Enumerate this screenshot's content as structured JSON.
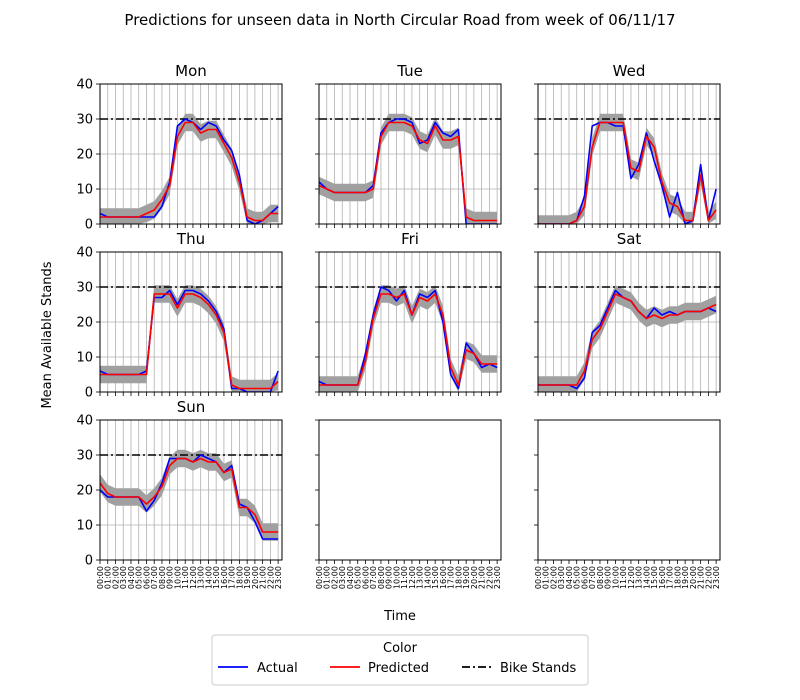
{
  "figure": {
    "title": "Predictions for unseen data in North Circular Road from week of 06/11/17",
    "xlabel": "Time",
    "ylabel": "Mean Available Stands"
  },
  "legend": {
    "title": "Color",
    "placement": "bottom-center",
    "items": [
      {
        "label": "Actual",
        "color": "#0000ff",
        "style": "solid"
      },
      {
        "label": "Predicted",
        "color": "#ff0000",
        "style": "solid"
      },
      {
        "label": "Bike Stands",
        "color": "#000000",
        "style": "dashdot"
      }
    ]
  },
  "chart_data": {
    "type": "line",
    "ylim": [
      0,
      40
    ],
    "yticks": [
      0,
      10,
      20,
      30,
      40
    ],
    "grid": true,
    "xticks": [
      "00:00",
      "01:00",
      "02:00",
      "03:00",
      "04:00",
      "05:00",
      "06:00",
      "07:00",
      "08:00",
      "09:00",
      "10:00",
      "11:00",
      "12:00",
      "13:00",
      "14:00",
      "15:00",
      "16:00",
      "17:00",
      "18:00",
      "19:00",
      "20:00",
      "21:00",
      "22:00",
      "23:00"
    ],
    "hours": [
      0,
      1,
      2,
      3,
      4,
      5,
      6,
      7,
      8,
      9,
      10,
      11,
      12,
      13,
      14,
      15,
      16,
      17,
      18,
      19,
      20,
      21,
      22,
      23
    ],
    "bike_stands": 30,
    "band_halfwidth": 2.5,
    "band_color": "#a0a0a0",
    "panels": [
      {
        "title": "Mon",
        "actual": [
          3,
          2,
          2,
          2,
          2,
          2,
          2,
          2,
          5,
          12,
          28,
          30,
          29,
          27,
          29,
          28,
          24,
          21,
          14,
          1,
          0,
          1,
          3,
          5
        ],
        "predicted": [
          2,
          2,
          2,
          2,
          2,
          2,
          3,
          4,
          7,
          11,
          25,
          29,
          29,
          26,
          27,
          27,
          23,
          19,
          12,
          2,
          1,
          1,
          3,
          3
        ]
      },
      {
        "title": "Tue",
        "actual": [
          12,
          10,
          9,
          9,
          9,
          9,
          9,
          11,
          26,
          29,
          30,
          30,
          29,
          23,
          24,
          29,
          26,
          25,
          27,
          0,
          0,
          0,
          0,
          0
        ],
        "predicted": [
          11,
          10,
          9,
          9,
          9,
          9,
          9,
          10,
          25,
          29,
          29,
          29,
          28,
          24,
          23,
          28,
          24,
          24,
          25,
          2,
          1,
          1,
          1,
          1
        ]
      },
      {
        "title": "Wed",
        "actual": [
          0,
          0,
          0,
          0,
          0,
          1,
          8,
          28,
          29,
          29,
          28,
          28,
          13,
          17,
          26,
          18,
          11,
          2,
          9,
          0,
          1,
          17,
          1,
          10
        ],
        "predicted": [
          0,
          0,
          0,
          0,
          0,
          1,
          5,
          22,
          29,
          29,
          29,
          29,
          16,
          15,
          25,
          22,
          12,
          6,
          5,
          1,
          1,
          14,
          1,
          4
        ]
      },
      {
        "title": "Thu",
        "actual": [
          6,
          5,
          5,
          5,
          5,
          5,
          6,
          27,
          27,
          29,
          25,
          29,
          29,
          28,
          26,
          23,
          18,
          1,
          1,
          0,
          0,
          0,
          0,
          6
        ],
        "predicted": [
          5,
          5,
          5,
          5,
          5,
          5,
          5,
          28,
          28,
          28,
          24,
          28,
          28,
          27,
          25,
          22,
          17,
          2,
          1,
          1,
          1,
          1,
          1,
          3
        ]
      },
      {
        "title": "Fri",
        "actual": [
          3,
          2,
          2,
          2,
          2,
          2,
          11,
          22,
          30,
          29,
          26,
          29,
          22,
          28,
          27,
          29,
          20,
          5,
          1,
          14,
          11,
          7,
          8,
          7
        ],
        "predicted": [
          2,
          2,
          2,
          2,
          2,
          2,
          9,
          21,
          28,
          28,
          27,
          28,
          22,
          27,
          26,
          28,
          22,
          7,
          2,
          12,
          11,
          8,
          8,
          8
        ]
      },
      {
        "title": "Sat",
        "actual": [
          2,
          2,
          2,
          2,
          2,
          1,
          4,
          17,
          19,
          24,
          29,
          27,
          26,
          23,
          21,
          24,
          22,
          23,
          22,
          23,
          23,
          23,
          24,
          23
        ],
        "predicted": [
          2,
          2,
          2,
          2,
          2,
          2,
          6,
          15,
          18,
          23,
          28,
          27,
          26,
          23,
          21,
          22,
          21,
          22,
          22,
          23,
          23,
          23,
          24,
          25
        ]
      },
      {
        "title": "Sun",
        "actual": [
          20,
          18,
          18,
          18,
          18,
          18,
          14,
          17,
          22,
          29,
          29,
          29,
          28,
          30,
          29,
          28,
          25,
          27,
          16,
          15,
          11,
          6,
          6,
          6
        ],
        "predicted": [
          22,
          19,
          18,
          18,
          18,
          18,
          16,
          18,
          21,
          27,
          29,
          29,
          28,
          29,
          28,
          28,
          25,
          26,
          15,
          15,
          13,
          8,
          8,
          8
        ]
      },
      {
        "title": "",
        "empty": true
      },
      {
        "title": "",
        "empty": true
      }
    ]
  }
}
